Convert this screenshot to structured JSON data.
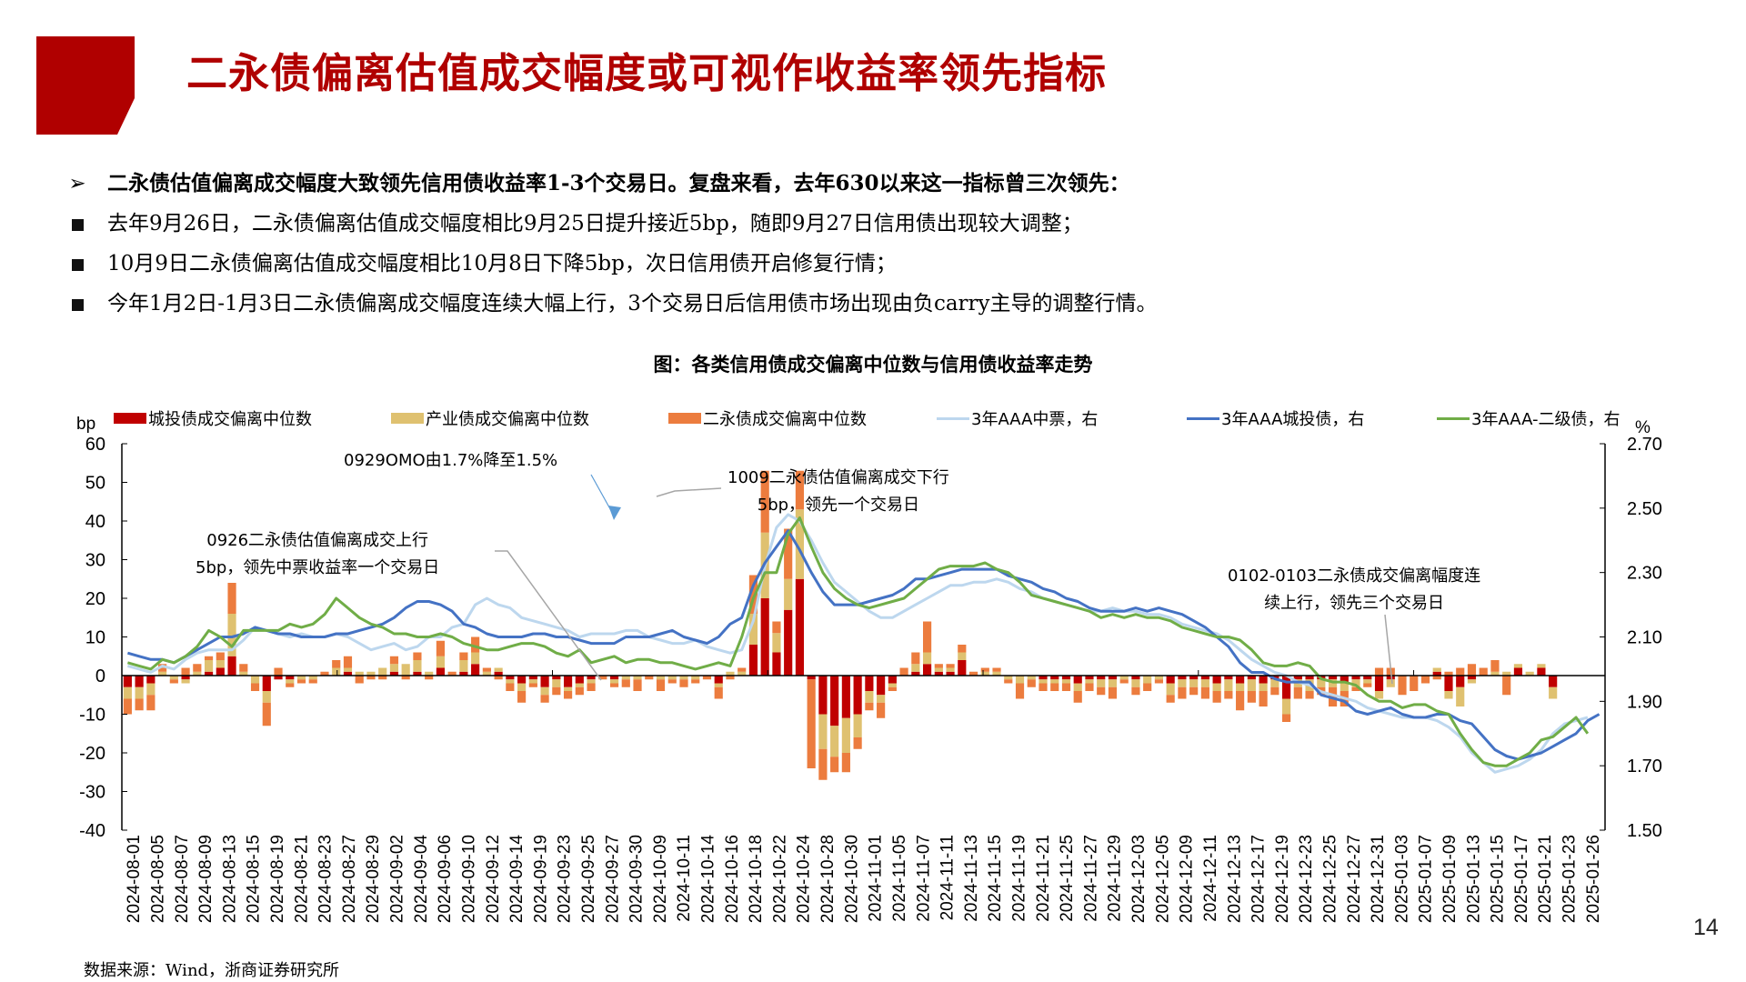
{
  "header": {
    "title": "二永债偏离估值成交幅度或可视作收益率领先指标",
    "accent_color": "#b00000"
  },
  "bullets": [
    {
      "marker": "arrow",
      "text": "二永债估值偏离成交幅度大致领先信用债收益率1-3个交易日。复盘来看，去年630以来这一指标曾三次领先："
    },
    {
      "marker": "square",
      "text": "去年9月26日，二永债偏离估值成交幅度相比9月25日提升接近5bp，随即9月27日信用债出现较大调整；"
    },
    {
      "marker": "square",
      "text": "10月9日二永债偏离估值成交幅度相比10月8日下降5bp，次日信用债开启修复行情；"
    },
    {
      "marker": "square",
      "text": "今年1月2日-1月3日二永债偏离成交幅度连续大幅上行，3个交易日后信用债市场出现由负carry主导的调整行情。"
    }
  ],
  "figure": {
    "caption": "图：各类信用债成交偏离中位数与信用债收益率走势",
    "source": "数据来源：Wind，浙商证券研究所"
  },
  "page_number": "14",
  "chart_data": {
    "type": "bar+line",
    "title": "各类信用债成交偏离中位数与信用债收益率走势",
    "ylabel": "bp",
    "ylabel_right": "%",
    "ylim": [
      -40,
      60
    ],
    "ylim_right": [
      1.5,
      2.7
    ],
    "yticks": [
      "60",
      "50",
      "40",
      "30",
      "20",
      "10",
      "0",
      "-10",
      "-20",
      "-30",
      "-40"
    ],
    "yticks_right": [
      "2.70",
      "2.50",
      "2.30",
      "2.10",
      "1.90",
      "1.70",
      "1.50"
    ],
    "legend": [
      {
        "name": "城投债成交偏离中位数",
        "kind": "bar",
        "color": "#c00000"
      },
      {
        "name": "产业债成交偏离中位数",
        "kind": "bar",
        "color": "#dfc170"
      },
      {
        "name": "二永债成交偏离中位数",
        "kind": "bar",
        "color": "#ec7c3e"
      },
      {
        "name": "3年AAA中票，右",
        "kind": "line",
        "color": "#bdd7ee"
      },
      {
        "name": "3年AAA城投债，右",
        "kind": "line",
        "color": "#4472c4"
      },
      {
        "name": "3年AAA-二级债，右",
        "kind": "line",
        "color": "#70ad47"
      }
    ],
    "x_tick_labels": [
      "2024-08-01",
      "2024-08-05",
      "2024-08-07",
      "2024-08-09",
      "2024-08-13",
      "2024-08-15",
      "2024-08-19",
      "2024-08-21",
      "2024-08-23",
      "2024-08-27",
      "2024-08-29",
      "2024-09-02",
      "2024-09-04",
      "2024-09-06",
      "2024-09-10",
      "2024-09-12",
      "2024-09-14",
      "2024-09-19",
      "2024-09-23",
      "2024-09-25",
      "2024-09-27",
      "2024-09-30",
      "2024-10-09",
      "2024-10-11",
      "2024-10-14",
      "2024-10-16",
      "2024-10-18",
      "2024-10-22",
      "2024-10-24",
      "2024-10-28",
      "2024-10-30",
      "2024-11-01",
      "2024-11-05",
      "2024-11-07",
      "2024-11-11",
      "2024-11-13",
      "2024-11-15",
      "2024-11-19",
      "2024-11-21",
      "2024-11-25",
      "2024-11-27",
      "2024-11-29",
      "2024-12-03",
      "2024-12-05",
      "2024-12-09",
      "2024-12-11",
      "2024-12-13",
      "2024-12-17",
      "2024-12-19",
      "2024-12-23",
      "2024-12-25",
      "2024-12-27",
      "2024-12-31",
      "2025-01-03",
      "2025-01-07",
      "2025-01-09",
      "2025-01-13",
      "2025-01-15",
      "2025-01-17",
      "2025-01-21",
      "2025-01-23",
      "2025-01-26"
    ],
    "series": [
      {
        "name": "城投债成交偏离中位数",
        "axis": "left",
        "type": "stacked_bar",
        "values": [
          -3,
          -3,
          -2,
          0,
          0,
          -1,
          0,
          1,
          2,
          5,
          0,
          0,
          -4,
          -1,
          -1,
          0,
          0,
          0,
          0,
          1,
          0,
          0,
          0,
          1,
          0,
          1,
          0,
          2,
          0,
          1,
          3,
          0,
          1,
          -1,
          -2,
          -1,
          -3,
          -1,
          -3,
          -2,
          -1,
          0,
          -1,
          0,
          0,
          0,
          0,
          0,
          0,
          0,
          0,
          -2,
          0,
          0,
          8,
          20,
          6,
          17,
          25,
          -1,
          -10,
          -13,
          -11,
          -10,
          -4,
          -5,
          -2,
          0,
          1,
          3,
          1,
          1,
          4,
          0,
          0,
          0,
          0,
          0,
          0,
          -1,
          -1,
          -1,
          -2,
          -1,
          -1,
          -1,
          0,
          -1,
          0,
          0,
          -2,
          -1,
          -1,
          -1,
          -2,
          -1,
          -2,
          -1,
          -2,
          -1,
          -6,
          -1,
          -1,
          -1,
          -1,
          -2,
          -1,
          -1,
          -4,
          -1,
          0,
          0,
          0,
          1,
          -4,
          -3,
          -1,
          0,
          0,
          0,
          2,
          0,
          2,
          -3
        ]
      },
      {
        "name": "产业债成交偏离中位数",
        "axis": "left",
        "type": "stacked_bar",
        "values": [
          -3,
          -3,
          -3,
          1,
          -1,
          -1,
          1,
          3,
          2,
          11,
          1,
          -2,
          -3,
          0,
          -1,
          -1,
          -1,
          0,
          2,
          1,
          1,
          1,
          2,
          2,
          3,
          3,
          1,
          3,
          0,
          3,
          3,
          1,
          1,
          -1,
          -2,
          -1,
          -2,
          -2,
          -1,
          -1,
          -1,
          0,
          -1,
          -1,
          -1,
          0,
          -1,
          -1,
          -1,
          -1,
          0,
          -1,
          1,
          1,
          8,
          17,
          5,
          8,
          18,
          0,
          -9,
          -8,
          -9,
          -6,
          -3,
          -2,
          -1,
          0,
          2,
          3,
          1,
          1,
          2,
          0,
          1,
          1,
          -1,
          -2,
          -1,
          -1,
          -1,
          -1,
          -2,
          -1,
          -2,
          -2,
          -1,
          -2,
          -2,
          -1,
          -3,
          -2,
          -2,
          -2,
          -2,
          -3,
          -2,
          -3,
          -2,
          -2,
          -4,
          -2,
          -3,
          -2,
          -2,
          -2,
          -2,
          -1,
          -2,
          -2,
          0,
          0,
          0,
          1,
          -2,
          -5,
          -1,
          0,
          1,
          1,
          1,
          1,
          1,
          -3
        ]
      },
      {
        "name": "二永债成交偏离中位数",
        "axis": "left",
        "type": "stacked_bar",
        "values": [
          -4,
          -3,
          -4,
          2,
          -1,
          2,
          2,
          1,
          2,
          8,
          2,
          -2,
          -6,
          2,
          -1,
          -1,
          -1,
          1,
          2,
          3,
          -2,
          -1,
          -1,
          2,
          -1,
          2,
          -1,
          4,
          1,
          2,
          4,
          1,
          -1,
          -2,
          -3,
          -1,
          -2,
          -2,
          -2,
          -2,
          -2,
          -1,
          -1,
          -2,
          -3,
          -1,
          -3,
          -1,
          -2,
          -1,
          -1,
          -3,
          -1,
          1,
          10,
          16,
          3,
          13,
          10,
          -23,
          -8,
          -4,
          -5,
          -3,
          -2,
          -4,
          -1,
          2,
          3,
          8,
          1,
          1,
          2,
          1,
          1,
          1,
          -1,
          -4,
          -2,
          -2,
          -2,
          -2,
          -3,
          -2,
          -2,
          -3,
          -1,
          -2,
          -2,
          -1,
          -2,
          -3,
          -2,
          -3,
          -3,
          -2,
          -5,
          -3,
          -4,
          -2,
          -2,
          -3,
          -2,
          -2,
          -5,
          -4,
          -1,
          -1,
          2,
          2,
          -5,
          -4,
          -2,
          -1,
          1,
          2,
          3,
          2,
          3,
          -5
        ]
      },
      {
        "name": "3年AAA中票，右",
        "axis": "right",
        "type": "line",
        "values": [
          2.01,
          2.0,
          1.99,
          2.01,
          2.0,
          2.03,
          2.05,
          2.06,
          2.06,
          2.06,
          2.09,
          2.13,
          2.12,
          2.11,
          2.1,
          2.11,
          2.1,
          2.1,
          2.11,
          2.1,
          2.08,
          2.06,
          2.07,
          2.08,
          2.06,
          2.07,
          2.1,
          2.1,
          2.13,
          2.14,
          2.2,
          2.22,
          2.2,
          2.19,
          2.16,
          2.15,
          2.14,
          2.13,
          2.12,
          2.1,
          2.11,
          2.11,
          2.11,
          2.12,
          2.12,
          2.1,
          2.09,
          2.08,
          2.08,
          2.09,
          2.07,
          2.06,
          2.05,
          2.06,
          2.15,
          2.32,
          2.44,
          2.48,
          2.46,
          2.4,
          2.33,
          2.27,
          2.24,
          2.21,
          2.18,
          2.16,
          2.16,
          2.18,
          2.2,
          2.22,
          2.24,
          2.26,
          2.26,
          2.27,
          2.27,
          2.28,
          2.27,
          2.25,
          2.24,
          2.22,
          2.21,
          2.2,
          2.19,
          2.18,
          2.18,
          2.19,
          2.18,
          2.18,
          2.17,
          2.17,
          2.16,
          2.14,
          2.13,
          2.12,
          2.11,
          2.09,
          2.06,
          2.03,
          2.01,
          1.99,
          1.98,
          1.96,
          1.95,
          1.93,
          1.92,
          1.91,
          1.9,
          1.88,
          1.87,
          1.86,
          1.85,
          1.85,
          1.85,
          1.84,
          1.82,
          1.79,
          1.74,
          1.71,
          1.68,
          1.69,
          1.7,
          1.72,
          1.75,
          1.8,
          1.83,
          1.84,
          1.85
        ]
      },
      {
        "name": "3年AAA城投债，右",
        "axis": "right",
        "type": "line",
        "values": [
          2.05,
          2.04,
          2.03,
          2.03,
          2.02,
          2.04,
          2.06,
          2.08,
          2.1,
          2.1,
          2.11,
          2.13,
          2.12,
          2.11,
          2.11,
          2.1,
          2.1,
          2.1,
          2.11,
          2.11,
          2.12,
          2.13,
          2.14,
          2.16,
          2.19,
          2.21,
          2.21,
          2.2,
          2.18,
          2.14,
          2.13,
          2.11,
          2.1,
          2.1,
          2.1,
          2.11,
          2.11,
          2.1,
          2.1,
          2.09,
          2.08,
          2.08,
          2.08,
          2.1,
          2.1,
          2.1,
          2.11,
          2.12,
          2.1,
          2.09,
          2.08,
          2.1,
          2.14,
          2.16,
          2.26,
          2.33,
          2.38,
          2.43,
          2.37,
          2.3,
          2.24,
          2.2,
          2.2,
          2.2,
          2.21,
          2.22,
          2.23,
          2.25,
          2.28,
          2.28,
          2.29,
          2.3,
          2.31,
          2.31,
          2.31,
          2.31,
          2.29,
          2.28,
          2.27,
          2.25,
          2.24,
          2.22,
          2.21,
          2.19,
          2.18,
          2.18,
          2.18,
          2.19,
          2.18,
          2.19,
          2.18,
          2.17,
          2.15,
          2.13,
          2.1,
          2.07,
          2.02,
          1.99,
          1.99,
          1.97,
          1.96,
          1.96,
          1.96,
          1.92,
          1.91,
          1.9,
          1.87,
          1.86,
          1.87,
          1.88,
          1.86,
          1.85,
          1.85,
          1.86,
          1.86,
          1.84,
          1.83,
          1.79,
          1.75,
          1.73,
          1.72,
          1.73,
          1.74,
          1.76,
          1.78,
          1.8,
          1.84,
          1.86
        ]
      },
      {
        "name": "3年AAA-二级债，右",
        "axis": "right",
        "type": "line",
        "values": [
          2.02,
          2.01,
          2.0,
          2.03,
          2.02,
          2.04,
          2.07,
          2.12,
          2.1,
          2.07,
          2.12,
          2.12,
          2.12,
          2.12,
          2.14,
          2.13,
          2.14,
          2.17,
          2.22,
          2.19,
          2.16,
          2.14,
          2.13,
          2.11,
          2.11,
          2.1,
          2.1,
          2.11,
          2.1,
          2.08,
          2.07,
          2.06,
          2.06,
          2.07,
          2.08,
          2.08,
          2.07,
          2.05,
          2.04,
          2.06,
          2.02,
          2.03,
          2.04,
          2.02,
          2.03,
          2.03,
          2.02,
          2.02,
          2.01,
          2.0,
          2.01,
          2.02,
          2.01,
          2.1,
          2.22,
          2.3,
          2.3,
          2.42,
          2.47,
          2.38,
          2.3,
          2.25,
          2.22,
          2.2,
          2.19,
          2.2,
          2.21,
          2.22,
          2.25,
          2.28,
          2.31,
          2.32,
          2.32,
          2.32,
          2.33,
          2.31,
          2.3,
          2.27,
          2.23,
          2.22,
          2.21,
          2.2,
          2.19,
          2.18,
          2.16,
          2.17,
          2.16,
          2.17,
          2.16,
          2.16,
          2.15,
          2.13,
          2.12,
          2.11,
          2.1,
          2.1,
          2.09,
          2.06,
          2.02,
          2.01,
          2.01,
          2.02,
          2.01,
          1.97,
          1.96,
          1.96,
          1.95,
          1.92,
          1.9,
          1.9,
          1.88,
          1.89,
          1.89,
          1.87,
          1.86,
          1.8,
          1.75,
          1.71,
          1.7,
          1.7,
          1.72,
          1.74,
          1.78,
          1.79,
          1.82,
          1.85,
          1.8
        ]
      }
    ],
    "annotations": [
      {
        "text_lines": [
          "0929OMO由1.7%降至1.5%"
        ],
        "arrow": "blue"
      },
      {
        "text_lines": [
          "1009二永债估值偏离成交下行",
          "5bp，领先一个交易日"
        ],
        "leader": "gray"
      },
      {
        "text_lines": [
          "0926二永债估值偏离成交上行",
          "5bp，领先中票收益率一个交易日"
        ],
        "leader": "gray"
      },
      {
        "text_lines": [
          "0102-0103二永债成交偏离幅度连",
          "续上行，领先三个交易日"
        ],
        "leader": "gray"
      }
    ]
  }
}
